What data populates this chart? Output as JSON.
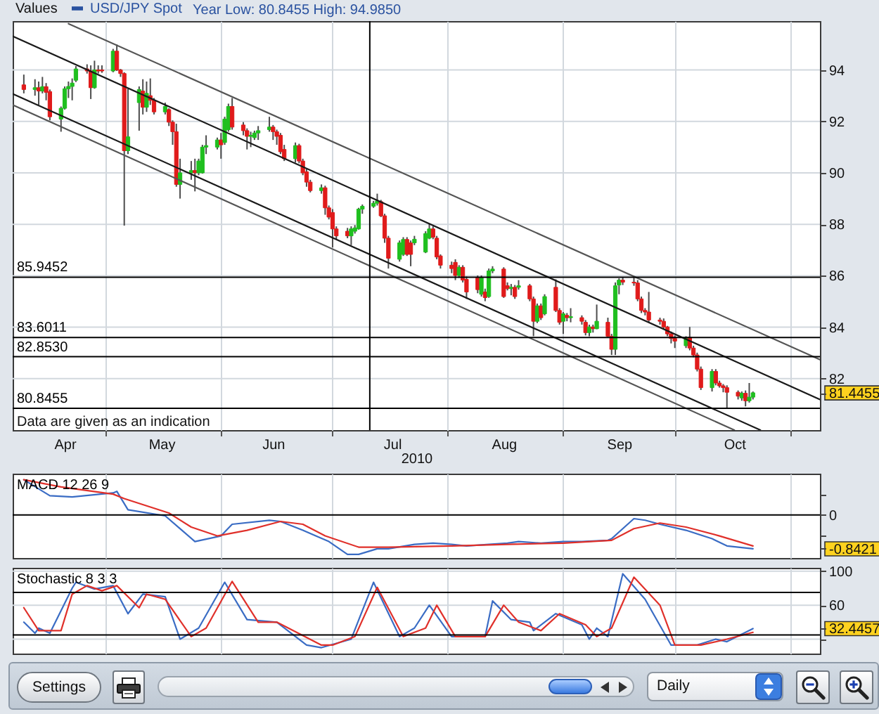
{
  "chart_data": [
    {
      "type": "candlestick",
      "legend_title": "Values",
      "legend": "top left",
      "xlabel": "2010",
      "x": [
        "2010-04-09",
        "2010-04-12",
        "2010-04-13",
        "2010-04-14",
        "2010-04-15",
        "2010-04-16",
        "2010-04-19",
        "2010-04-20",
        "2010-04-21",
        "2010-04-22",
        "2010-04-23",
        "2010-04-26",
        "2010-04-27",
        "2010-04-28",
        "2010-04-29",
        "2010-04-30",
        "2010-05-03",
        "2010-05-04",
        "2010-05-05",
        "2010-05-06",
        "2010-05-07",
        "2010-05-10",
        "2010-05-11",
        "2010-05-12",
        "2010-05-13",
        "2010-05-14",
        "2010-05-17",
        "2010-05-18",
        "2010-05-19",
        "2010-05-20",
        "2010-05-21",
        "2010-05-24",
        "2010-05-25",
        "2010-05-26",
        "2010-05-27",
        "2010-05-28",
        "2010-05-31",
        "2010-06-01",
        "2010-06-02",
        "2010-06-03",
        "2010-06-04",
        "2010-06-07",
        "2010-06-08",
        "2010-06-09",
        "2010-06-10",
        "2010-06-11",
        "2010-06-14",
        "2010-06-15",
        "2010-06-16",
        "2010-06-17",
        "2010-06-18",
        "2010-06-21",
        "2010-06-22",
        "2010-06-23",
        "2010-06-24",
        "2010-06-25",
        "2010-06-28",
        "2010-06-29",
        "2010-06-30",
        "2010-07-01",
        "2010-07-02",
        "2010-07-05",
        "2010-07-06",
        "2010-07-07",
        "2010-07-08",
        "2010-07-09",
        "2010-07-12",
        "2010-07-13",
        "2010-07-14",
        "2010-07-15",
        "2010-07-16",
        "2010-07-19",
        "2010-07-20",
        "2010-07-21",
        "2010-07-22",
        "2010-07-23",
        "2010-07-26",
        "2010-07-27",
        "2010-07-28",
        "2010-07-29",
        "2010-07-30",
        "2010-08-02",
        "2010-08-03",
        "2010-08-04",
        "2010-08-05",
        "2010-08-06",
        "2010-08-09",
        "2010-08-10",
        "2010-08-11",
        "2010-08-12",
        "2010-08-13",
        "2010-08-16",
        "2010-08-17",
        "2010-08-18",
        "2010-08-19",
        "2010-08-20",
        "2010-08-23",
        "2010-08-24",
        "2010-08-25",
        "2010-08-26",
        "2010-08-27",
        "2010-08-30",
        "2010-08-31",
        "2010-09-01",
        "2010-09-02",
        "2010-09-03",
        "2010-09-06",
        "2010-09-07",
        "2010-09-08",
        "2010-09-09",
        "2010-09-10",
        "2010-09-13",
        "2010-09-14",
        "2010-09-15",
        "2010-09-16",
        "2010-09-17",
        "2010-09-20",
        "2010-09-21",
        "2010-09-22",
        "2010-09-23",
        "2010-09-24",
        "2010-09-27",
        "2010-09-28",
        "2010-09-29",
        "2010-09-30",
        "2010-10-01",
        "2010-10-04",
        "2010-10-05",
        "2010-10-06",
        "2010-10-07",
        "2010-10-08",
        "2010-10-11",
        "2010-10-12",
        "2010-10-13",
        "2010-10-14",
        "2010-10-15",
        "2010-10-18",
        "2010-10-19",
        "2010-10-20",
        "2010-10-21",
        "2010-10-22"
      ],
      "xlim": [
        "2010-04-06",
        "2010-11-09"
      ],
      "xticks": [
        {
          "value": "2010-04-20",
          "label": "Apr"
        },
        {
          "value": "2010-05-01",
          "label": null
        },
        {
          "value": "2010-05-16",
          "label": "May"
        },
        {
          "value": "2010-06-01",
          "label": null
        },
        {
          "value": "2010-06-15",
          "label": "Jun"
        },
        {
          "value": "2010-07-01",
          "label": null
        },
        {
          "value": "2010-07-17",
          "label": "Jul"
        },
        {
          "value": "2010-08-01",
          "label": null
        },
        {
          "value": "2010-08-16",
          "label": "Aug"
        },
        {
          "value": "2010-09-01",
          "label": null
        },
        {
          "value": "2010-09-16",
          "label": "Sep"
        },
        {
          "value": "2010-10-01",
          "label": null
        },
        {
          "value": "2010-10-17",
          "label": "Oct"
        },
        {
          "value": "2010-11-01",
          "label": null
        }
      ],
      "ylim": [
        80,
        95.9
      ],
      "yticks": [
        {
          "value": 81.4455,
          "label": "81.4455"
        },
        82,
        84,
        86,
        88,
        90,
        92,
        94
      ],
      "grid": true,
      "series": [
        {
          "name": "USD/JPY Spot",
          "type": "candlestick",
          "color": "#2a52a0",
          "ohlc": [
            [
              93.42,
              93.82,
              93.09,
              93.24
            ],
            [
              93.24,
              93.64,
              93.0,
              93.31
            ],
            [
              93.31,
              93.55,
              92.64,
              93.18
            ],
            [
              93.18,
              93.73,
              93.09,
              93.35
            ],
            [
              93.35,
              93.49,
              92.82,
              93.13
            ],
            [
              93.16,
              93.24,
              92.04,
              92.18
            ],
            [
              92.09,
              92.58,
              91.6,
              92.51
            ],
            [
              92.51,
              93.36,
              92.46,
              93.27
            ],
            [
              93.27,
              93.55,
              92.91,
              93.36
            ],
            [
              93.36,
              93.67,
              92.82,
              93.49
            ],
            [
              93.6,
              94.15,
              93.53,
              94.04
            ],
            [
              94.04,
              94.22,
              93.86,
              93.96
            ],
            [
              93.96,
              94.18,
              92.87,
              93.31
            ],
            [
              93.31,
              94.36,
              93.27,
              94.0
            ],
            [
              94.0,
              94.18,
              93.86,
              93.96
            ],
            [
              94.0,
              94.18,
              93.89,
              93.96
            ],
            [
              93.96,
              94.82,
              93.91,
              94.73
            ],
            [
              94.73,
              94.99,
              93.96,
              94.0
            ],
            [
              94.0,
              94.04,
              93.73,
              93.86
            ],
            [
              93.86,
              93.91,
              87.95,
              90.86
            ],
            [
              90.86,
              93.27,
              90.73,
              91.4
            ],
            [
              92.73,
              93.36,
              91.64,
              93.24
            ],
            [
              93.18,
              93.64,
              92.27,
              92.55
            ],
            [
              92.55,
              93.55,
              92.37,
              93.09
            ],
            [
              93.0,
              93.67,
              92.64,
              92.82
            ],
            [
              92.82,
              92.91,
              92.27,
              92.37
            ],
            [
              92.37,
              92.73,
              92.27,
              92.58
            ],
            [
              92.46,
              92.51,
              91.82,
              91.97
            ],
            [
              91.97,
              92.04,
              91.09,
              91.6
            ],
            [
              91.6,
              91.91,
              89.46,
              89.55
            ],
            [
              89.55,
              90.55,
              89.0,
              90.0
            ],
            [
              90.0,
              90.46,
              89.73,
              90.09
            ],
            [
              90.09,
              90.55,
              89.28,
              90.0
            ],
            [
              90.0,
              90.55,
              89.91,
              90.46
            ],
            [
              90.0,
              91.09,
              89.97,
              91.0
            ],
            [
              91.0,
              91.46,
              90.73,
              91.06
            ],
            [
              91.0,
              91.37,
              90.91,
              91.28
            ],
            [
              91.28,
              91.55,
              90.55,
              91.09
            ],
            [
              91.18,
              92.18,
              91.09,
              92.09
            ],
            [
              91.68,
              92.69,
              91.6,
              92.58
            ],
            [
              92.58,
              92.91,
              91.68,
              91.78
            ],
            [
              91.86,
              91.97,
              91.46,
              91.64
            ],
            [
              91.64,
              91.73,
              90.91,
              91.42
            ],
            [
              91.42,
              91.6,
              91.0,
              91.46
            ],
            [
              91.37,
              91.64,
              91.28,
              91.55
            ],
            [
              91.55,
              91.82,
              91.28,
              91.64
            ],
            [
              91.68,
              92.18,
              91.6,
              91.78
            ],
            [
              91.78,
              91.86,
              91.28,
              91.6
            ],
            [
              91.6,
              91.68,
              91.09,
              91.42
            ],
            [
              91.46,
              91.55,
              90.73,
              90.82
            ],
            [
              90.91,
              91.09,
              90.46,
              90.55
            ],
            [
              90.55,
              91.18,
              90.4,
              91.06
            ],
            [
              91.06,
              91.13,
              90.37,
              90.46
            ],
            [
              90.46,
              90.55,
              89.91,
              90.0
            ],
            [
              90.04,
              90.15,
              89.46,
              89.64
            ],
            [
              89.64,
              89.73,
              89.24,
              89.31
            ],
            [
              89.31,
              89.55,
              89.19,
              89.42
            ],
            [
              89.42,
              89.5,
              88.37,
              88.64
            ],
            [
              88.64,
              88.73,
              88.19,
              88.28
            ],
            [
              88.46,
              88.59,
              87.1,
              87.82
            ],
            [
              87.82,
              87.92,
              87.42,
              87.55
            ],
            [
              87.73,
              87.86,
              87.46,
              87.55
            ],
            [
              87.55,
              87.92,
              87.19,
              87.82
            ],
            [
              87.73,
              87.97,
              87.64,
              87.86
            ],
            [
              87.82,
              88.64,
              87.79,
              88.59
            ],
            [
              88.59,
              88.77,
              88.41,
              88.7
            ],
            [
              88.7,
              88.91,
              88.64,
              88.82
            ],
            [
              88.82,
              89.19,
              88.73,
              88.91
            ],
            [
              88.88,
              88.95,
              88.28,
              88.33
            ],
            [
              88.33,
              88.41,
              87.28,
              87.46
            ],
            [
              87.46,
              87.55,
              86.28,
              86.68
            ],
            [
              86.64,
              87.37,
              86.55,
              87.28
            ],
            [
              86.83,
              87.5,
              86.77,
              87.41
            ],
            [
              87.41,
              87.5,
              86.77,
              86.83
            ],
            [
              87.28,
              87.37,
              86.37,
              86.83
            ],
            [
              87.28,
              87.55,
              87.19,
              87.42
            ],
            [
              86.92,
              87.73,
              86.88,
              87.64
            ],
            [
              87.46,
              88.04,
              87.42,
              87.82
            ],
            [
              87.82,
              87.92,
              87.42,
              87.5
            ],
            [
              87.46,
              87.55,
              86.64,
              86.73
            ],
            [
              86.77,
              86.83,
              86.28,
              86.41
            ],
            [
              86.41,
              86.55,
              86.1,
              86.28
            ],
            [
              86.52,
              86.64,
              85.83,
              86.01
            ],
            [
              86.01,
              86.41,
              85.92,
              86.33
            ],
            [
              86.33,
              86.41,
              85.74,
              85.83
            ],
            [
              85.86,
              85.97,
              85.1,
              85.37
            ],
            [
              85.92,
              86.01,
              85.32,
              85.46
            ],
            [
              85.28,
              86.01,
              85.19,
              85.92
            ],
            [
              85.37,
              85.5,
              85.01,
              85.15
            ],
            [
              85.19,
              86.28,
              85.14,
              86.19
            ],
            [
              86.19,
              86.37,
              86.1,
              86.26
            ],
            [
              86.26,
              86.33,
              85.14,
              85.19
            ],
            [
              85.61,
              85.74,
              85.43,
              85.5
            ],
            [
              85.5,
              85.68,
              85.24,
              85.55
            ],
            [
              85.55,
              85.64,
              85.1,
              85.19
            ],
            [
              85.55,
              85.83,
              85.46,
              85.61
            ],
            [
              85.61,
              85.68,
              85.01,
              85.1
            ],
            [
              85.1,
              85.19,
              83.65,
              84.23
            ],
            [
              84.23,
              84.92,
              84.16,
              84.83
            ],
            [
              84.83,
              84.92,
              84.28,
              84.37
            ],
            [
              84.52,
              85.28,
              84.46,
              85.19
            ],
            [
              85.55,
              85.86,
              84.59,
              84.65
            ],
            [
              84.65,
              84.74,
              84.1,
              84.19
            ],
            [
              84.23,
              84.59,
              83.74,
              84.52
            ],
            [
              84.46,
              84.55,
              84.23,
              84.37
            ],
            [
              84.37,
              84.74,
              84.19,
              84.41
            ],
            [
              84.37,
              84.46,
              84.1,
              84.23
            ],
            [
              84.19,
              84.28,
              83.68,
              83.79
            ],
            [
              83.79,
              84.1,
              83.65,
              84.01
            ],
            [
              84.01,
              84.1,
              83.79,
              83.94
            ],
            [
              83.94,
              84.88,
              83.92,
              84.23
            ],
            [
              84.19,
              84.37,
              83.61,
              83.65
            ],
            [
              83.65,
              83.74,
              82.92,
              83.14
            ],
            [
              83.14,
              85.74,
              82.92,
              85.61
            ],
            [
              85.64,
              85.9,
              85.28,
              85.83
            ],
            [
              85.83,
              85.95,
              85.64,
              85.75
            ],
            [
              85.75,
              85.94,
              85.61,
              85.72
            ],
            [
              85.72,
              85.83,
              85.01,
              85.1
            ],
            [
              85.1,
              85.19,
              84.55,
              84.65
            ],
            [
              84.65,
              84.74,
              84.46,
              84.59
            ],
            [
              84.59,
              85.37,
              84.19,
              84.28
            ],
            [
              84.28,
              84.37,
              84.1,
              84.23
            ],
            [
              84.23,
              84.34,
              83.92,
              84.01
            ],
            [
              84.01,
              84.05,
              83.65,
              83.74
            ],
            [
              83.74,
              83.83,
              83.37,
              83.56
            ],
            [
              83.56,
              83.68,
              83.19,
              83.46
            ],
            [
              83.28,
              83.65,
              83.19,
              83.56
            ],
            [
              83.61,
              84.01,
              83.1,
              83.19
            ],
            [
              83.19,
              83.28,
              82.83,
              82.92
            ],
            [
              82.92,
              83.01,
              82.28,
              82.37
            ],
            [
              82.37,
              82.47,
              81.56,
              81.65
            ],
            [
              81.65,
              82.37,
              81.5,
              82.28
            ],
            [
              82.28,
              82.37,
              81.74,
              81.83
            ],
            [
              81.83,
              81.92,
              81.65,
              81.72
            ],
            [
              81.72,
              81.79,
              81.47,
              81.65
            ],
            [
              81.65,
              81.74,
              80.85,
              81.47
            ],
            [
              81.47,
              81.54,
              81.19,
              81.32
            ],
            [
              81.25,
              81.5,
              81.14,
              81.43
            ],
            [
              81.43,
              81.54,
              80.92,
              81.14
            ],
            [
              81.14,
              81.83,
              81.07,
              81.28
            ],
            [
              81.28,
              81.5,
              81.19,
              81.45
            ]
          ],
          "colors": [
            "#e01b1b",
            "#1fbf1f",
            "#e01b1b",
            "#1fbf1f",
            "#e01b1b",
            "#e01b1b",
            "#1fbf1f",
            "#1fbf1f",
            "#1fbf1f",
            "#1fbf1f",
            "#1fbf1f",
            "#e01b1b",
            "#e01b1b",
            "#1fbf1f",
            "#e01b1b",
            "#e01b1b",
            "#1fbf1f",
            "#e01b1b",
            "#e01b1b",
            "#e01b1b",
            "#1fbf1f",
            "#1fbf1f",
            "#e01b1b",
            "#1fbf1f",
            "#e01b1b",
            "#e01b1b",
            "#1fbf1f",
            "#e01b1b",
            "#e01b1b",
            "#e01b1b",
            "#1fbf1f",
            "#1fbf1f",
            "#e01b1b",
            "#1fbf1f",
            "#1fbf1f",
            "#1fbf1f",
            "#1fbf1f",
            "#e01b1b",
            "#1fbf1f",
            "#1fbf1f",
            "#e01b1b",
            "#e01b1b",
            "#e01b1b",
            "#1fbf1f",
            "#1fbf1f",
            "#1fbf1f",
            "#1fbf1f",
            "#e01b1b",
            "#e01b1b",
            "#e01b1b",
            "#e01b1b",
            "#1fbf1f",
            "#e01b1b",
            "#e01b1b",
            "#e01b1b",
            "#e01b1b",
            "#1fbf1f",
            "#e01b1b",
            "#e01b1b",
            "#e01b1b",
            "#e01b1b",
            "#e01b1b",
            "#1fbf1f",
            "#1fbf1f",
            "#1fbf1f",
            "#1fbf1f",
            "#1fbf1f",
            "#1fbf1f",
            "#e01b1b",
            "#e01b1b",
            "#e01b1b",
            "#1fbf1f",
            "#1fbf1f",
            "#e01b1b",
            "#e01b1b",
            "#1fbf1f",
            "#1fbf1f",
            "#1fbf1f",
            "#e01b1b",
            "#e01b1b",
            "#e01b1b",
            "#e01b1b",
            "#e01b1b",
            "#1fbf1f",
            "#e01b1b",
            "#e01b1b",
            "#e01b1b",
            "#1fbf1f",
            "#e01b1b",
            "#1fbf1f",
            "#1fbf1f",
            "#e01b1b",
            "#e01b1b",
            "#1fbf1f",
            "#e01b1b",
            "#1fbf1f",
            "#e01b1b",
            "#e01b1b",
            "#1fbf1f",
            "#e01b1b",
            "#1fbf1f",
            "#e01b1b",
            "#e01b1b",
            "#1fbf1f",
            "#e01b1b",
            "#1fbf1f",
            "#e01b1b",
            "#e01b1b",
            "#1fbf1f",
            "#e01b1b",
            "#1fbf1f",
            "#e01b1b",
            "#e01b1b",
            "#1fbf1f",
            "#1fbf1f",
            "#e01b1b",
            "#e01b1b",
            "#e01b1b",
            "#e01b1b",
            "#e01b1b",
            "#e01b1b",
            "#e01b1b",
            "#e01b1b",
            "#e01b1b",
            "#e01b1b",
            "#e01b1b",
            "#1fbf1f",
            "#e01b1b",
            "#e01b1b",
            "#e01b1b",
            "#e01b1b",
            "#1fbf1f",
            "#e01b1b",
            "#e01b1b",
            "#e01b1b",
            "#e01b1b",
            "#e01b1b",
            "#1fbf1f",
            "#e01b1b",
            "#1fbf1f",
            "#1fbf1f"
          ]
        },
        {
          "type": "line",
          "color": "#555555",
          "x": [
            "2010-04-21",
            "2010-11-09"
          ],
          "values": [
            95.8,
            82.74
          ]
        },
        {
          "type": "line",
          "color": "#1a1a1a",
          "x": [
            "2010-04-06",
            "2010-11-09"
          ],
          "values": [
            95.31,
            81.19
          ]
        },
        {
          "type": "line",
          "color": "#1a1a1a",
          "x": [
            "2010-04-06",
            "2010-10-24"
          ],
          "values": [
            93.07,
            80.0
          ]
        },
        {
          "type": "line",
          "color": "#555555",
          "x": [
            "2010-04-06",
            "2010-10-17"
          ],
          "values": [
            92.64,
            80.0
          ]
        }
      ],
      "ref_lines": [
        {
          "axis": "y",
          "value": 85.9452,
          "label": "85.9452",
          "color": "#000000"
        },
        {
          "axis": "y",
          "value": 83.6011,
          "label": "83.6011",
          "color": "#000000"
        },
        {
          "axis": "y",
          "value": 82.853,
          "label": "82.8530",
          "color": "#000000"
        },
        {
          "axis": "y",
          "value": 80.8455,
          "label": "80.8455",
          "color": "#000000"
        },
        {
          "axis": "x",
          "value": "2010-07-11",
          "color": "#000000"
        }
      ],
      "annotations": [
        "Year Low: 80.8455 High: 94.9850",
        "Data are given as an indication"
      ]
    },
    {
      "type": "line",
      "title": "MACD 12 26 9",
      "xlim": [
        "2010-04-06",
        "2010-11-09"
      ],
      "xticks": [
        {
          "value": "2010-05-01",
          "label": null
        },
        {
          "value": "2010-06-01",
          "label": null
        },
        {
          "value": "2010-07-01",
          "label": null
        },
        {
          "value": "2010-08-01",
          "label": null
        },
        {
          "value": "2010-09-01",
          "label": null
        },
        {
          "value": "2010-10-01",
          "label": null
        },
        {
          "value": "2010-11-01",
          "label": null
        }
      ],
      "tick_labels": "y",
      "ylim": [
        -1.07,
        1.03
      ],
      "yticks": [
        {
          "value": 0.5,
          "label": null
        },
        0,
        {
          "value": -0.5,
          "label": null
        },
        {
          "value": -0.8421,
          "label": "-0.8421"
        }
      ],
      "grid": "x",
      "series": [
        {
          "color": "#3a6cc4",
          "x": [
            "2010-04-09",
            "2010-04-16",
            "2010-04-22",
            "2010-05-03",
            "2010-05-04",
            "2010-05-07",
            "2010-05-17",
            "2010-05-25",
            "2010-06-01",
            "2010-06-04",
            "2010-06-14",
            "2010-06-17",
            "2010-06-23",
            "2010-06-30",
            "2010-07-05",
            "2010-07-08",
            "2010-07-13",
            "2010-07-16",
            "2010-07-23",
            "2010-07-28",
            "2010-08-02",
            "2010-08-06",
            "2010-08-12",
            "2010-08-17",
            "2010-08-20",
            "2010-08-26",
            "2010-09-01",
            "2010-09-06",
            "2010-09-13",
            "2010-09-14",
            "2010-09-20",
            "2010-09-23",
            "2010-09-27",
            "2010-10-04",
            "2010-10-11",
            "2010-10-15",
            "2010-10-22"
          ],
          "values": [
            0.88,
            0.48,
            0.45,
            0.55,
            0.59,
            0.13,
            -0.02,
            -0.66,
            -0.52,
            -0.23,
            -0.13,
            -0.16,
            -0.38,
            -0.66,
            -0.98,
            -0.98,
            -0.84,
            -0.84,
            -0.73,
            -0.7,
            -0.73,
            -0.77,
            -0.73,
            -0.7,
            -0.66,
            -0.7,
            -0.66,
            -0.66,
            -0.63,
            -0.59,
            -0.09,
            -0.13,
            -0.23,
            -0.38,
            -0.59,
            -0.77,
            -0.84
          ]
        },
        {
          "color": "#e0302a",
          "x": [
            "2010-04-09",
            "2010-04-19",
            "2010-05-03",
            "2010-05-06",
            "2010-05-18",
            "2010-05-24",
            "2010-05-31",
            "2010-06-08",
            "2010-06-17",
            "2010-06-23",
            "2010-06-29",
            "2010-07-08",
            "2010-07-16",
            "2010-08-02",
            "2010-08-17",
            "2010-09-01",
            "2010-09-14",
            "2010-09-20",
            "2010-09-27",
            "2010-10-04",
            "2010-10-13",
            "2010-10-22"
          ],
          "values": [
            0.88,
            0.7,
            0.52,
            0.41,
            0.05,
            -0.3,
            -0.52,
            -0.38,
            -0.16,
            -0.23,
            -0.52,
            -0.8,
            -0.8,
            -0.77,
            -0.73,
            -0.7,
            -0.63,
            -0.34,
            -0.2,
            -0.3,
            -0.52,
            -0.77
          ]
        }
      ],
      "ref_lines": [
        {
          "axis": "y",
          "value": 0,
          "color": "#000000"
        }
      ]
    },
    {
      "type": "line",
      "title": "Stochastic 8 3 3",
      "xlim": [
        "2010-04-06",
        "2010-11-09"
      ],
      "xticks": [
        {
          "value": "2010-05-01",
          "label": null
        },
        {
          "value": "2010-06-01",
          "label": null
        },
        {
          "value": "2010-07-01",
          "label": null
        },
        {
          "value": "2010-08-01",
          "label": null
        },
        {
          "value": "2010-09-01",
          "label": null
        },
        {
          "value": "2010-10-01",
          "label": null
        },
        {
          "value": "2010-11-01",
          "label": null
        }
      ],
      "tick_labels": "y",
      "ylim": [
        3,
        104
      ],
      "yticks": [
        100,
        60,
        {
          "value": 32.4457,
          "label": "32.4457"
        },
        {
          "value": 20,
          "label": null
        }
      ],
      "grid": true,
      "series": [
        {
          "color": "#3a6cc4",
          "x": [
            "2010-04-09",
            "2010-04-12",
            "2010-04-13",
            "2010-04-16",
            "2010-04-22",
            "2010-04-23",
            "2010-04-28",
            "2010-05-03",
            "2010-05-07",
            "2010-05-11",
            "2010-05-17",
            "2010-05-21",
            "2010-05-26",
            "2010-06-02",
            "2010-06-08",
            "2010-06-16",
            "2010-06-24",
            "2010-06-28",
            "2010-07-06",
            "2010-07-12",
            "2010-07-19",
            "2010-07-23",
            "2010-07-27",
            "2010-08-02",
            "2010-08-11",
            "2010-08-13",
            "2010-08-18",
            "2010-08-23",
            "2010-08-24",
            "2010-08-30",
            "2010-09-06",
            "2010-09-08",
            "2010-09-10",
            "2010-09-13",
            "2010-09-17",
            "2010-09-23",
            "2010-09-30",
            "2010-10-07",
            "2010-10-12",
            "2010-10-15",
            "2010-10-22"
          ],
          "values": [
            40,
            27,
            33,
            27,
            80,
            87,
            79,
            83,
            50,
            73,
            70,
            20,
            33,
            87,
            43,
            40,
            13,
            10,
            20,
            87,
            23,
            33,
            60,
            23,
            23,
            65,
            43,
            40,
            30,
            50,
            37,
            20,
            33,
            23,
            97,
            67,
            13,
            13,
            20,
            17,
            32.45
          ]
        },
        {
          "color": "#e0302a",
          "x": [
            "2010-04-09",
            "2010-04-13",
            "2010-04-19",
            "2010-04-22",
            "2010-04-26",
            "2010-04-30",
            "2010-05-04",
            "2010-05-10",
            "2010-05-12",
            "2010-05-17",
            "2010-05-24",
            "2010-05-28",
            "2010-06-04",
            "2010-06-11",
            "2010-06-16",
            "2010-06-28",
            "2010-07-01",
            "2010-07-07",
            "2010-07-13",
            "2010-07-20",
            "2010-07-26",
            "2010-07-29",
            "2010-08-03",
            "2010-08-11",
            "2010-08-16",
            "2010-08-20",
            "2010-08-26",
            "2010-08-31",
            "2010-09-07",
            "2010-09-10",
            "2010-09-14",
            "2010-09-20",
            "2010-09-27",
            "2010-10-01",
            "2010-10-08",
            "2010-10-15",
            "2010-10-22"
          ],
          "values": [
            57,
            30,
            30,
            73,
            83,
            77,
            83,
            57,
            73,
            67,
            23,
            33,
            88,
            40,
            40,
            13,
            13,
            23,
            81,
            23,
            33,
            60,
            23,
            23,
            60,
            40,
            30,
            50,
            37,
            23,
            33,
            93,
            60,
            13,
            13,
            20,
            28
          ]
        }
      ],
      "ref_lines": [
        {
          "axis": "y",
          "value": 75,
          "color": "#000000"
        },
        {
          "axis": "y",
          "value": 25,
          "color": "#000000"
        }
      ]
    },
    {
      "type": "other",
      "annotations": [
        "Settings",
        "Daily"
      ]
    }
  ]
}
